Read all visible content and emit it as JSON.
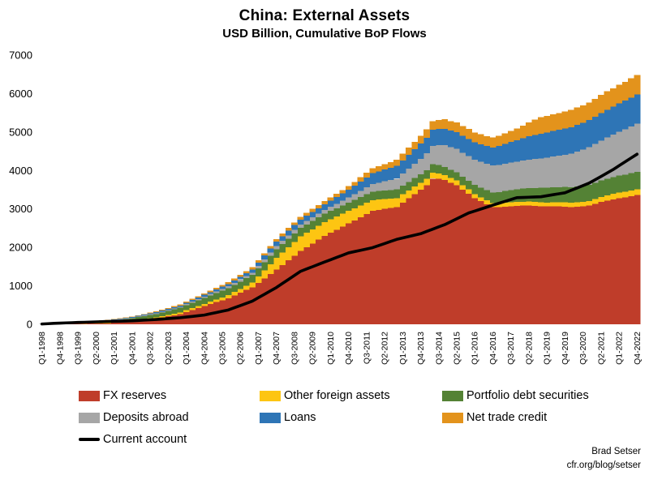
{
  "title": "China: External Assets",
  "subtitle": "USD Billion, Cumulative BoP Flows",
  "attribution": {
    "line1": "Brad Setser",
    "line2": "cfr.org/blog/setser"
  },
  "legend": {
    "items": [
      {
        "label": "FX reserves",
        "color": "#bf3d2a",
        "swatch": "box"
      },
      {
        "label": "Other foreign assets",
        "color": "#fdc512",
        "swatch": "box"
      },
      {
        "label": "Portfolio debt securities",
        "color": "#548235",
        "swatch": "box"
      },
      {
        "label": "Deposits abroad",
        "color": "#a6a6a6",
        "swatch": "box"
      },
      {
        "label": "Loans",
        "color": "#2e75b6",
        "swatch": "box"
      },
      {
        "label": "Net trade credit",
        "color": "#e3931c",
        "swatch": "box"
      },
      {
        "label": "Current account",
        "color": "#000000",
        "swatch": "line"
      }
    ]
  },
  "chart_data": {
    "type": "bar",
    "stacked": true,
    "title": "China: External Assets",
    "subtitle": "USD Billion, Cumulative BoP Flows",
    "grid": false,
    "legend_position": "bottom",
    "n_quarters": 100,
    "x_tick_every": 3,
    "x_tick_labels": [
      "Q1-1998",
      "Q4-1998",
      "Q3-1999",
      "Q2-2000",
      "Q1-2001",
      "Q4-2001",
      "Q3-2002",
      "Q2-2003",
      "Q1-2004",
      "Q4-2004",
      "Q3-2005",
      "Q2-2006",
      "Q1-2007",
      "Q4-2007",
      "Q3-2008",
      "Q2-2009",
      "Q1-2010",
      "Q4-2010",
      "Q3-2011",
      "Q2-2012",
      "Q1-2013",
      "Q4-2013",
      "Q3-2014",
      "Q2-2015",
      "Q1-2016",
      "Q4-2016",
      "Q3-2017",
      "Q2-2018",
      "Q1-2019",
      "Q4-2019",
      "Q3-2020",
      "Q2-2021",
      "Q1-2022",
      "Q4-2022"
    ],
    "ylim": [
      0,
      7000
    ],
    "y_tick_step": 1000,
    "y_tick_labels": [
      "0",
      "1000",
      "2000",
      "3000",
      "4000",
      "5000",
      "6000",
      "7000"
    ],
    "series": [
      {
        "name": "FX reserves",
        "color": "#bf3d2a",
        "values": [
          2,
          3,
          5,
          6,
          8,
          10,
          13,
          15,
          18,
          21,
          23,
          26,
          38,
          50,
          61,
          73,
          92,
          111,
          130,
          148,
          177,
          206,
          236,
          265,
          317,
          368,
          420,
          471,
          523,
          575,
          626,
          678,
          749,
          820,
          892,
          963,
          1078,
          1193,
          1309,
          1424,
          1544,
          1664,
          1784,
          1904,
          2003,
          2102,
          2201,
          2300,
          2380,
          2460,
          2540,
          2620,
          2703,
          2785,
          2868,
          2950,
          2975,
          3000,
          3025,
          3050,
          3163,
          3275,
          3388,
          3500,
          3620,
          3790,
          3780,
          3750,
          3680,
          3620,
          3500,
          3400,
          3280,
          3200,
          3120,
          3050,
          3050,
          3060,
          3070,
          3080,
          3085,
          3090,
          3080,
          3070,
          3065,
          3070,
          3065,
          3060,
          3050,
          3060,
          3070,
          3090,
          3130,
          3180,
          3220,
          3250,
          3280,
          3300,
          3330,
          3360
        ]
      },
      {
        "name": "Other foreign assets",
        "color": "#fdc512",
        "values": [
          1,
          2,
          4,
          5,
          6,
          7,
          7,
          8,
          10,
          12,
          13,
          15,
          16,
          17,
          19,
          20,
          22,
          25,
          27,
          30,
          34,
          38,
          41,
          45,
          49,
          53,
          56,
          60,
          65,
          70,
          75,
          80,
          90,
          100,
          110,
          120,
          165,
          210,
          255,
          300,
          320,
          340,
          360,
          380,
          375,
          370,
          365,
          360,
          352,
          345,
          337,
          330,
          317,
          305,
          292,
          280,
          267,
          255,
          242,
          230,
          217,
          205,
          192,
          180,
          167,
          155,
          142,
          130,
          125,
          120,
          115,
          110,
          107,
          105,
          102,
          100,
          100,
          100,
          100,
          100,
          100,
          100,
          100,
          100,
          102,
          105,
          107,
          110,
          112,
          115,
          117,
          120,
          125,
          130,
          135,
          140,
          142,
          145,
          147,
          150
        ]
      },
      {
        "name": "Portfolio debt securities",
        "color": "#548235",
        "values": [
          2,
          5,
          7,
          10,
          14,
          17,
          21,
          25,
          29,
          32,
          36,
          40,
          46,
          52,
          59,
          65,
          71,
          77,
          84,
          90,
          97,
          105,
          112,
          120,
          127,
          135,
          142,
          150,
          157,
          165,
          172,
          180,
          185,
          190,
          195,
          200,
          207,
          215,
          222,
          230,
          227,
          225,
          222,
          220,
          219,
          217,
          216,
          215,
          215,
          215,
          215,
          215,
          216,
          217,
          219,
          220,
          222,
          225,
          227,
          230,
          227,
          225,
          222,
          220,
          219,
          217,
          216,
          215,
          216,
          217,
          219,
          220,
          235,
          250,
          265,
          280,
          292,
          305,
          317,
          330,
          342,
          355,
          367,
          380,
          385,
          390,
          395,
          400,
          405,
          410,
          415,
          420,
          425,
          430,
          435,
          440,
          444,
          448,
          452,
          455
        ]
      },
      {
        "name": "Deposits abroad",
        "color": "#a6a6a6",
        "values": [
          1,
          2,
          4,
          5,
          6,
          7,
          7,
          8,
          9,
          10,
          11,
          12,
          13,
          13,
          14,
          15,
          16,
          17,
          19,
          20,
          22,
          24,
          26,
          28,
          31,
          34,
          37,
          40,
          42,
          45,
          47,
          50,
          52,
          55,
          57,
          60,
          65,
          70,
          75,
          80,
          82,
          85,
          87,
          90,
          92,
          95,
          97,
          100,
          107,
          115,
          122,
          130,
          147,
          165,
          182,
          200,
          220,
          240,
          260,
          280,
          310,
          340,
          370,
          400,
          440,
          480,
          520,
          560,
          582,
          605,
          627,
          650,
          662,
          675,
          687,
          700,
          705,
          710,
          715,
          720,
          730,
          740,
          750,
          760,
          780,
          800,
          820,
          840,
          875,
          910,
          945,
          980,
          1010,
          1040,
          1070,
          1100,
          1137,
          1175,
          1212,
          1250
        ]
      },
      {
        "name": "Loans",
        "color": "#2e75b6",
        "values": [
          1,
          2,
          4,
          5,
          6,
          7,
          7,
          8,
          9,
          10,
          11,
          12,
          13,
          15,
          16,
          18,
          20,
          21,
          23,
          25,
          27,
          28,
          30,
          32,
          35,
          38,
          41,
          45,
          49,
          53,
          56,
          60,
          66,
          72,
          79,
          85,
          92,
          100,
          107,
          115,
          119,
          122,
          126,
          130,
          134,
          137,
          141,
          145,
          159,
          172,
          186,
          200,
          220,
          240,
          260,
          280,
          292,
          305,
          317,
          330,
          347,
          365,
          382,
          400,
          407,
          415,
          422,
          430,
          432,
          435,
          437,
          440,
          447,
          455,
          462,
          470,
          492,
          515,
          537,
          560,
          582,
          605,
          627,
          650,
          657,
          665,
          672,
          680,
          685,
          690,
          695,
          700,
          707,
          715,
          722,
          730,
          740,
          748,
          755,
          760
        ]
      },
      {
        "name": "Net trade credit",
        "color": "#e3931c",
        "values": [
          1,
          2,
          4,
          5,
          6,
          7,
          7,
          8,
          8,
          9,
          9,
          10,
          11,
          11,
          12,
          13,
          15,
          16,
          18,
          20,
          22,
          23,
          25,
          27,
          29,
          31,
          33,
          35,
          37,
          40,
          42,
          45,
          47,
          50,
          52,
          55,
          57,
          60,
          62,
          65,
          67,
          70,
          72,
          75,
          77,
          80,
          82,
          85,
          87,
          90,
          92,
          95,
          102,
          110,
          117,
          125,
          134,
          142,
          151,
          160,
          171,
          182,
          193,
          205,
          216,
          227,
          238,
          250,
          252,
          255,
          257,
          260,
          259,
          257,
          256,
          255,
          266,
          277,
          288,
          300,
          332,
          365,
          397,
          430,
          432,
          435,
          437,
          440,
          445,
          450,
          455,
          460,
          465,
          470,
          475,
          480,
          487,
          493,
          500,
          505
        ]
      }
    ],
    "line_series": {
      "name": "Current account",
      "color": "#000000",
      "values": [
        8,
        16,
        24,
        31,
        37,
        42,
        48,
        53,
        58,
        63,
        68,
        73,
        77,
        81,
        86,
        90,
        99,
        108,
        116,
        125,
        136,
        148,
        159,
        171,
        188,
        205,
        222,
        240,
        273,
        306,
        339,
        372,
        430,
        487,
        545,
        603,
        691,
        780,
        868,
        956,
        1061,
        1166,
        1271,
        1376,
        1437,
        1497,
        1558,
        1619,
        1678,
        1738,
        1797,
        1857,
        1891,
        1925,
        1959,
        1993,
        2047,
        2100,
        2154,
        2208,
        2245,
        2282,
        2319,
        2356,
        2415,
        2474,
        2533,
        2592,
        2668,
        2744,
        2820,
        2896,
        2946,
        2997,
        3047,
        3098,
        3147,
        3196,
        3244,
        3293,
        3299,
        3305,
        3311,
        3317,
        3343,
        3369,
        3394,
        3420,
        3482,
        3544,
        3606,
        3669,
        3757,
        3845,
        3934,
        4022,
        4124,
        4225,
        4325,
        4424
      ]
    }
  }
}
